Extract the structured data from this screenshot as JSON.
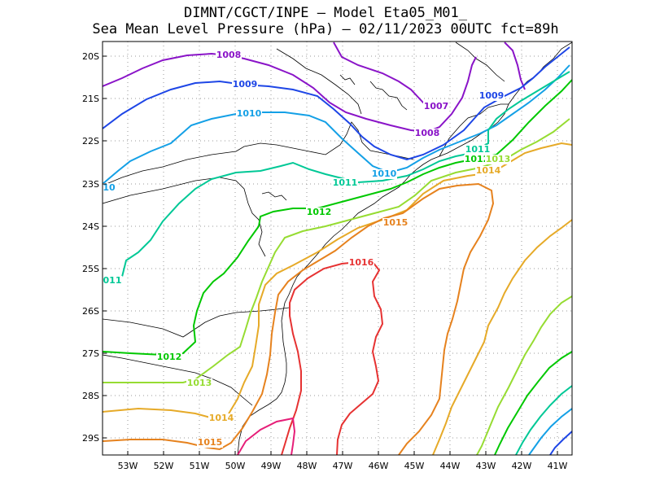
{
  "title": {
    "line1": "DIMNT/CGCT/INPE –  Model Eta05_M01_",
    "line2": "Sea Mean Level Pressure (hPa) – 02/11/2023 00UTC fct=89h"
  },
  "axes": {
    "lon_ticks": [
      "53W",
      "52W",
      "51W",
      "50W",
      "49W",
      "48W",
      "47W",
      "46W",
      "45W",
      "44W",
      "43W",
      "42W",
      "41W"
    ],
    "lat_ticks": [
      "20S",
      "21S",
      "22S",
      "23S",
      "24S",
      "25S",
      "26S",
      "27S",
      "28S",
      "29S"
    ]
  },
  "chart_data": {
    "type": "contour_map",
    "variable": "Sea Mean Level Pressure (hPa)",
    "grid": true,
    "contour_labels": [
      {
        "text": "1008",
        "color": "#8a14c8"
      },
      {
        "text": "1007",
        "color": "#8a14c8"
      },
      {
        "text": "1008",
        "color": "#8a14c8"
      },
      {
        "text": "1009",
        "color": "#1e46e6"
      },
      {
        "text": "1009",
        "color": "#1e46e6"
      },
      {
        "text": "1010",
        "color": "#14a0e6"
      },
      {
        "text": "1010",
        "color": "#14a0e6"
      },
      {
        "text": "10",
        "color": "#14a0e6"
      },
      {
        "text": "1011",
        "color": "#00c896"
      },
      {
        "text": "1011",
        "color": "#00c896"
      },
      {
        "text": "011",
        "color": "#00c896"
      },
      {
        "text": "1012",
        "color": "#00c800"
      },
      {
        "text": "1012",
        "color": "#00c800"
      },
      {
        "text": "1012",
        "color": "#00c800"
      },
      {
        "text": "1013",
        "color": "#96dc32"
      },
      {
        "text": "1013",
        "color": "#96dc32"
      },
      {
        "text": "1014",
        "color": "#e6aa28"
      },
      {
        "text": "1014",
        "color": "#e6aa28"
      },
      {
        "text": "1015",
        "color": "#e6821e"
      },
      {
        "text": "1015",
        "color": "#e6821e"
      },
      {
        "text": "1016",
        "color": "#e63232"
      }
    ],
    "contour_colors": {
      "1007": "#8a14c8",
      "1008": "#8a14c8",
      "1009": "#1e46e6",
      "1010": "#14a0e6",
      "1011": "#00c896",
      "1012": "#00c800",
      "1013": "#96dc32",
      "1014": "#e6aa28",
      "1015": "#e6821e",
      "1016": "#e63232",
      "1017": "#e61e78"
    }
  }
}
